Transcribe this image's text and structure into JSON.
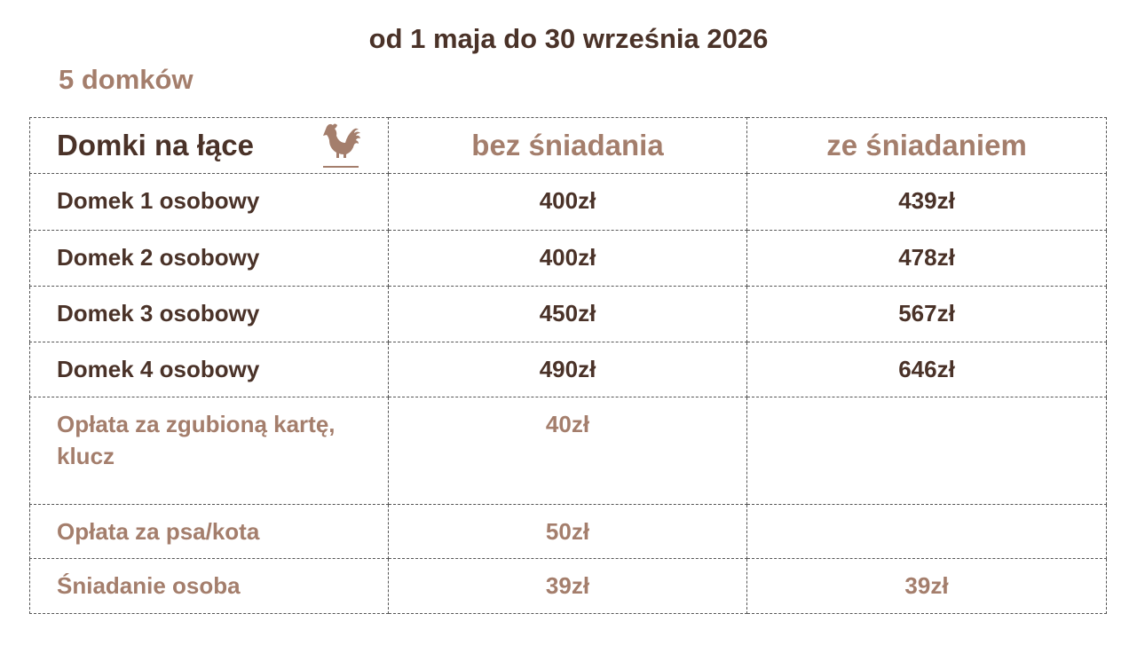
{
  "header": {
    "title": "od 1 maja do 30 września 2026",
    "subtitle": "5 domków"
  },
  "table": {
    "columns": [
      "Domki na łące",
      "bez śniadania",
      "ze śniadaniem"
    ],
    "rows": [
      [
        "Domek 1 osobowy",
        "400zł",
        "439zł"
      ],
      [
        "Domek 2 osobowy",
        "400zł",
        "478zł"
      ],
      [
        "Domek 3 osobowy",
        "450zł",
        "567zł"
      ],
      [
        "Domek 4 osobowy",
        "490zł",
        "646zł"
      ],
      [
        "Opłata za zgubioną kartę, klucz",
        "40zł"
      ],
      [
        "Opłata za psa/kota",
        "50zł"
      ],
      [
        "Śniadanie osoba",
        "39zł",
        "39zł"
      ]
    ]
  }
}
